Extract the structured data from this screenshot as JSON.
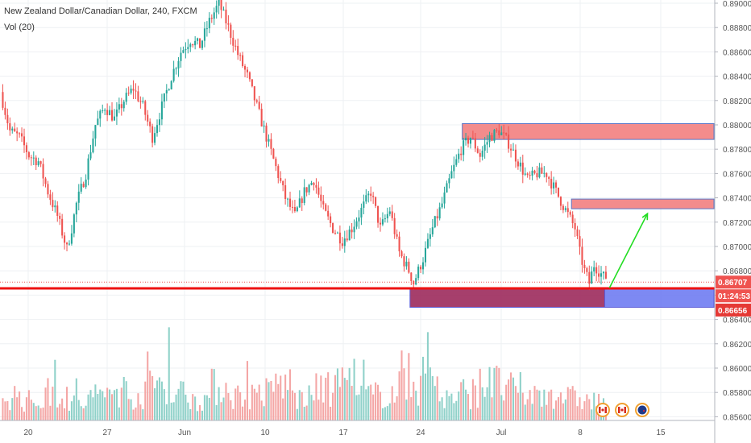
{
  "header": {
    "symbol_line": "New Zealand Dollar/Canadian Dollar, 240, FXCM",
    "volume_label": "Vol (20)"
  },
  "price_axis": {
    "ticks": [
      "0.89000",
      "0.88800",
      "0.88600",
      "0.88400",
      "0.88200",
      "0.88000",
      "0.87800",
      "0.87600",
      "0.87400",
      "0.87200",
      "0.87000",
      "0.86800",
      "0.86600",
      "0.86400",
      "0.86200",
      "0.86000",
      "0.85800",
      "0.85600"
    ],
    "current_price": "0.86707",
    "countdown": "01:24:53",
    "level_price": "0.86656"
  },
  "time_axis": {
    "ticks": [
      "20",
      "27",
      "Jun",
      "10",
      "17",
      "24",
      "Jul",
      "8",
      "15"
    ]
  },
  "colors": {
    "up": "#26a69a",
    "down": "#ef5350",
    "vol_up": "#8fd1c9",
    "vol_down": "#f4a6a5",
    "current_price_badge": "#ef5350",
    "level_badge": "#e53935",
    "countdown_badge": "#ef5350",
    "support_zone": "#9c2a5c",
    "support_zone_ext": "#6f7cf2",
    "resistance_zone": "#f28080",
    "arrow": "#22dd22",
    "horizontal_line": "#ee1111"
  },
  "icons": [
    "canada-flag-icon",
    "canada-flag-icon",
    "new-zealand-flag-icon"
  ],
  "chart_data": {
    "type": "candlestick",
    "title": "New Zealand Dollar/Canadian Dollar, 240, FXCM",
    "price_range": [
      0.8545,
      0.8903
    ],
    "key_path": [
      [
        0,
        0.8827
      ],
      [
        4,
        0.8795
      ],
      [
        8,
        0.879
      ],
      [
        12,
        0.8775
      ],
      [
        16,
        0.877
      ],
      [
        20,
        0.8745
      ],
      [
        24,
        0.8725
      ],
      [
        28,
        0.8698
      ],
      [
        30,
        0.8715
      ],
      [
        32,
        0.8735
      ],
      [
        36,
        0.876
      ],
      [
        40,
        0.88
      ],
      [
        44,
        0.8815
      ],
      [
        48,
        0.8805
      ],
      [
        52,
        0.882
      ],
      [
        56,
        0.883
      ],
      [
        60,
        0.8815
      ],
      [
        64,
        0.879
      ],
      [
        68,
        0.8815
      ],
      [
        72,
        0.884
      ],
      [
        76,
        0.886
      ],
      [
        80,
        0.887
      ],
      [
        84,
        0.8865
      ],
      [
        88,
        0.8885
      ],
      [
        92,
        0.89
      ],
      [
        96,
        0.888
      ],
      [
        100,
        0.8858
      ],
      [
        104,
        0.884
      ],
      [
        108,
        0.8815
      ],
      [
        112,
        0.879
      ],
      [
        116,
        0.8765
      ],
      [
        120,
        0.874
      ],
      [
        124,
        0.8725
      ],
      [
        128,
        0.8745
      ],
      [
        132,
        0.8755
      ],
      [
        136,
        0.873
      ],
      [
        140,
        0.8715
      ],
      [
        144,
        0.8705
      ],
      [
        148,
        0.8715
      ],
      [
        152,
        0.873
      ],
      [
        156,
        0.8745
      ],
      [
        160,
        0.8715
      ],
      [
        164,
        0.873
      ],
      [
        168,
        0.8695
      ],
      [
        172,
        0.868
      ],
      [
        174,
        0.867
      ],
      [
        178,
        0.869
      ],
      [
        182,
        0.8715
      ],
      [
        186,
        0.8735
      ],
      [
        190,
        0.876
      ],
      [
        194,
        0.878
      ],
      [
        198,
        0.879
      ],
      [
        202,
        0.8775
      ],
      [
        206,
        0.879
      ],
      [
        210,
        0.8795
      ],
      [
        214,
        0.8785
      ],
      [
        218,
        0.877
      ],
      [
        222,
        0.8755
      ],
      [
        226,
        0.876
      ],
      [
        230,
        0.876
      ],
      [
        234,
        0.8745
      ],
      [
        238,
        0.873
      ],
      [
        242,
        0.8715
      ],
      [
        244,
        0.8695
      ],
      [
        246,
        0.868
      ],
      [
        248,
        0.867
      ],
      [
        250,
        0.8685
      ],
      [
        252,
        0.868
      ],
      [
        254,
        0.8675
      ]
    ],
    "volume_path": [
      0.9,
      0.7,
      1.0,
      0.6,
      0.8,
      1.1,
      0.9,
      1.4,
      1.0,
      0.8,
      1.2,
      0.9,
      1.0,
      1.3,
      0.8,
      1.1,
      1.5,
      0.9,
      1.0,
      1.2,
      1.6,
      0.8,
      1.0,
      1.3,
      1.1,
      0.9,
      1.0,
      0.8,
      0.7,
      0.6
    ],
    "zones": [
      {
        "name": "resistance-upper",
        "from_x": 194,
        "to_x": 300,
        "low": 0.8788,
        "high": 0.8801
      },
      {
        "name": "resistance-mid",
        "from_x": 240,
        "to_x": 300,
        "low": 0.8731,
        "high": 0.8739
      },
      {
        "name": "support",
        "from_x": 172,
        "to_x": 254,
        "low": 0.865,
        "high": 0.8666
      },
      {
        "name": "support-extension",
        "from_x": 254,
        "to_x": 300,
        "low": 0.865,
        "high": 0.8666
      }
    ],
    "horizontal_line": 0.86656,
    "arrow": {
      "from": [
        256,
        0.8666
      ],
      "to": [
        272,
        0.8727
      ]
    }
  }
}
